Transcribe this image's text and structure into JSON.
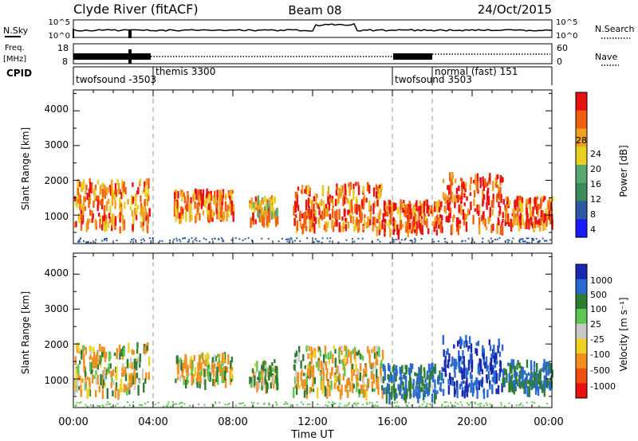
{
  "header": {
    "station": "Clyde River (fitACF)",
    "beam": "Beam 08",
    "date": "24/Oct/2015"
  },
  "strips": {
    "nsky_label": "N.Sky",
    "nsky_ticks": [
      "10^5",
      "10^0"
    ],
    "nsearch_label": "N.Search",
    "nsearch_ticks": [
      "10^5",
      "10^0"
    ],
    "freq_label": "Freq.",
    "freq_unit": "[MHz]",
    "freq_ticks": [
      "18",
      "8"
    ],
    "nave_label": "Nave",
    "nave_ticks": [
      "60",
      "0"
    ],
    "cpid_label": "CPID"
  },
  "cpid_segments": [
    {
      "name": "twofsound -3503",
      "start": "00:00"
    },
    {
      "name": "themis 3300",
      "start": "04:00"
    },
    {
      "name": "twofsound 3503",
      "start": "16:00"
    },
    {
      "name": "normal (fast) 151",
      "start": "18:00"
    }
  ],
  "panels": {
    "power": {
      "ylabel": "Slant Range [km]",
      "yticks": [
        "1000",
        "2000",
        "3000",
        "4000"
      ],
      "cbar_label": "Power [dB]",
      "cbar_ticks": [
        "4",
        "8",
        "12",
        "16",
        "20",
        "24",
        "28"
      ],
      "cbar_colors": [
        "#1a1aff",
        "#2c5aa0",
        "#3a8c5c",
        "#5aa870",
        "#e8d020",
        "#f0a020",
        "#f06010",
        "#e81010"
      ]
    },
    "velocity": {
      "ylabel": "Slant Range [km]",
      "yticks": [
        "1000",
        "2000",
        "3000",
        "4000"
      ],
      "cbar_label": "Velocity [m s⁻¹]",
      "cbar_ticks": [
        "1000",
        "500",
        "100",
        "25",
        "-25",
        "-100",
        "-500",
        "-1000"
      ],
      "cbar_colors": [
        "#1a2ab0",
        "#2a6ad0",
        "#2e7d32",
        "#5cc850",
        "#c8c8c8",
        "#f0d020",
        "#f09020",
        "#f05010",
        "#e81010"
      ]
    }
  },
  "xaxis": {
    "label": "Time UT",
    "ticks": [
      "00:00",
      "04:00",
      "08:00",
      "12:00",
      "16:00",
      "20:00",
      "00:00"
    ]
  },
  "chart_data": {
    "type": "heatmap",
    "title": "Clyde River (fitACF)",
    "x": {
      "label": "Time UT",
      "range_hours": [
        0,
        24
      ]
    },
    "y": {
      "label": "Slant Range [km]",
      "range": [
        180,
        4600
      ]
    },
    "mode_changes_hours": [
      4,
      16,
      18
    ],
    "power_colorbar": {
      "label": "Power [dB]",
      "range": [
        0,
        32
      ]
    },
    "velocity_colorbar": {
      "label": "Velocity [m s⁻¹]",
      "range": [
        -1000,
        1000
      ]
    },
    "scatter_regions": [
      {
        "t0": 0.0,
        "t1": 3.8,
        "r0": 600,
        "r1": 2000,
        "power_db": 24,
        "velocity": -25
      },
      {
        "t0": 5.0,
        "t1": 8.0,
        "r0": 900,
        "r1": 1700,
        "power_db": 24,
        "velocity": -100
      },
      {
        "t0": 8.8,
        "t1": 10.2,
        "r0": 800,
        "r1": 1500,
        "power_db": 22,
        "velocity": 100
      },
      {
        "t0": 11.0,
        "t1": 15.5,
        "r0": 600,
        "r1": 1900,
        "power_db": 26,
        "velocity": -100
      },
      {
        "t0": 15.5,
        "t1": 18.5,
        "r0": 500,
        "r1": 1400,
        "power_db": 26,
        "velocity": 500
      },
      {
        "t0": 18.5,
        "t1": 21.5,
        "r0": 600,
        "r1": 2200,
        "power_db": 28,
        "velocity": 1000
      },
      {
        "t0": 21.5,
        "t1": 24.0,
        "r0": 700,
        "r1": 1500,
        "power_db": 26,
        "velocity": 500
      }
    ]
  }
}
